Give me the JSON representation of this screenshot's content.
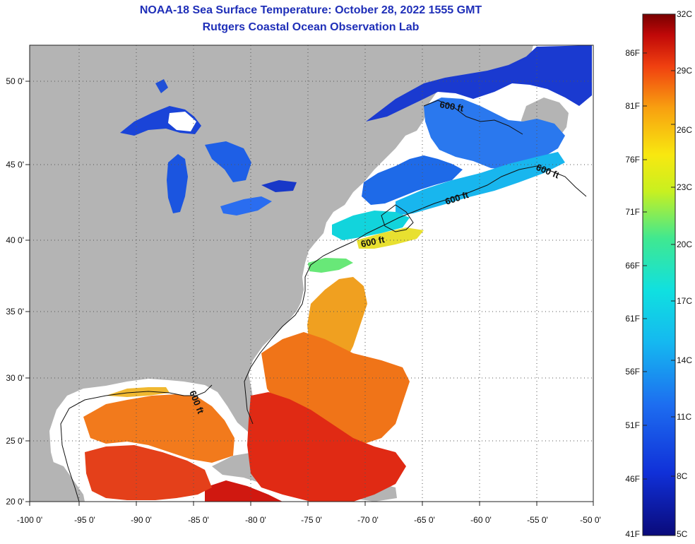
{
  "header": {
    "title": "NOAA-18 Sea Surface Temperature:  October 28, 2022 1555 GMT",
    "subtitle": "Rutgers Coastal Ocean Observation Lab"
  },
  "axes": {
    "lat_labels": [
      "50 0'",
      "45 0'",
      "40 0'",
      "35 0'",
      "30 0'",
      "25 0'",
      "20 0'"
    ],
    "lon_labels": [
      "-100 0'",
      "-95 0'",
      "-90 0'",
      "-85 0'",
      "-80 0'",
      "-75 0'",
      "-70 0'",
      "-65 0'",
      "-60 0'",
      "-55 0'",
      "-50 0'"
    ]
  },
  "contours": {
    "label": "600 ft"
  },
  "colorbar": {
    "celsius": [
      "32C",
      "29C",
      "26C",
      "23C",
      "20C",
      "17C",
      "14C",
      "11C",
      "8C",
      "5C"
    ],
    "fahrenheit": [
      "86F",
      "81F",
      "76F",
      "71F",
      "66F",
      "61F",
      "56F",
      "51F",
      "46F",
      "41F"
    ]
  },
  "colors": {
    "land": "#b4b4b4",
    "no_data": "#ffffff",
    "title": "#1f2fb8"
  }
}
